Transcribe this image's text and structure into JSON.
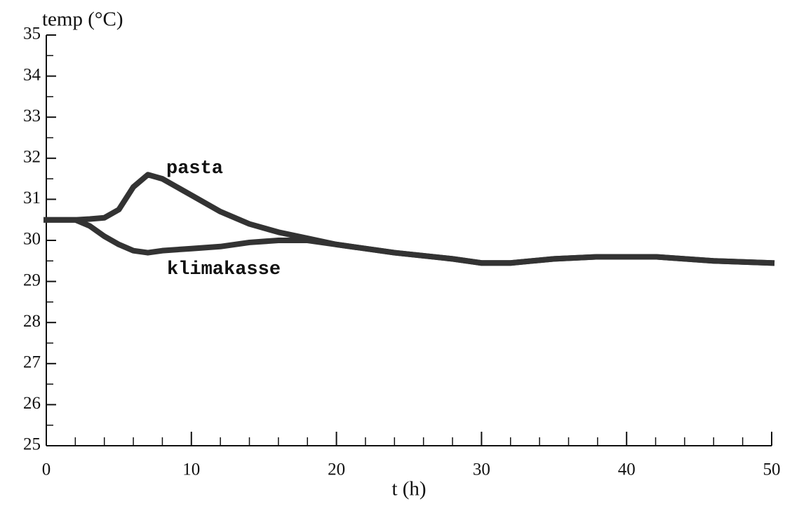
{
  "chart_data": {
    "type": "line",
    "y_label": "temp (°C)",
    "x_label": "t (h)",
    "annotations": [
      "pasta",
      "klimakasse"
    ],
    "x": [
      0,
      2,
      3,
      4,
      5,
      6,
      7,
      8,
      10,
      12,
      14,
      16,
      18,
      20,
      24,
      28,
      30,
      32,
      35,
      38,
      42,
      46,
      50
    ],
    "series": [
      {
        "name": "pasta",
        "color": "#333333",
        "values": [
          30.5,
          30.5,
          30.52,
          30.55,
          30.75,
          31.3,
          31.6,
          31.5,
          31.1,
          30.7,
          30.4,
          30.2,
          30.05,
          29.9,
          29.7,
          29.55,
          29.45,
          29.45,
          29.55,
          29.6,
          29.6,
          29.5,
          29.45
        ]
      },
      {
        "name": "klimakasse",
        "color": "#333333",
        "values": [
          30.5,
          30.5,
          30.35,
          30.1,
          29.9,
          29.75,
          29.7,
          29.75,
          29.8,
          29.85,
          29.95,
          30.0,
          30.0,
          29.9,
          29.7,
          29.55,
          29.45,
          29.45,
          29.55,
          29.6,
          29.6,
          29.5,
          29.45
        ]
      }
    ],
    "xlim": [
      0,
      50
    ],
    "ylim": [
      25,
      35
    ],
    "xticks": [
      0,
      10,
      20,
      30,
      40,
      50
    ],
    "yticks": [
      25,
      26,
      27,
      28,
      29,
      30,
      31,
      32,
      33,
      34,
      35
    ],
    "xminorticks": [
      2,
      4,
      6,
      8,
      12,
      14,
      16,
      18,
      22,
      24,
      26,
      28,
      32,
      34,
      36,
      38,
      42,
      44,
      46,
      48
    ],
    "yminorticks": [
      25.5,
      26.5,
      27.5,
      28.5,
      29.5,
      30.5,
      31.5,
      32.5,
      33.5,
      34.5
    ]
  }
}
